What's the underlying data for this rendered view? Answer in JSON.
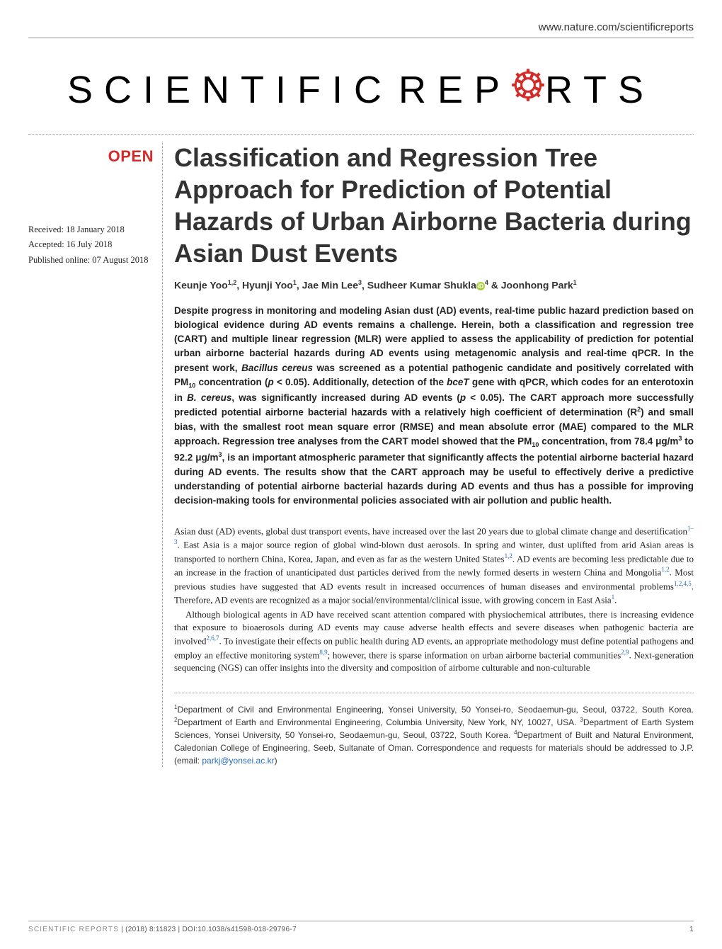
{
  "header": {
    "url": "www.nature.com/scientificreports"
  },
  "logo": {
    "part1": "SCIENTIFIC",
    "part2_pre": "REP",
    "part2_post": "RTS",
    "gear_color": "#d62a28"
  },
  "badges": {
    "open": "OPEN"
  },
  "dates": {
    "received": "Received: 18 January 2018",
    "accepted": "Accepted: 16 July 2018",
    "published": "Published online: 07 August 2018"
  },
  "title": "Classification and Regression Tree Approach for Prediction of Potential Hazards of Urban Airborne Bacteria during Asian Dust Events",
  "authors_html": "Keunje Yoo<sup>1,2</sup>, Hyunji Yoo<sup>1</sup>, Jae Min Lee<sup>3</sup>, Sudheer Kumar Shukla<span class='orcid-icon' data-name='orcid-icon' data-interactable='false'>iD</span><sup>4</sup> & Joonhong Park<sup>1</sup>",
  "abstract_html": "Despite progress in monitoring and modeling Asian dust (AD) events, real-time public hazard prediction based on biological evidence during AD events remains a challenge. Herein, both a classification and regression tree (CART) and multiple linear regression (MLR) were applied to assess the applicability of prediction for potential urban airborne bacterial hazards during AD events using metagenomic analysis and real-time qPCR. In the present work, <span class='ital'>Bacillus cereus</span> was screened as a potential pathogenic candidate and positively correlated with PM<sub>10</sub> concentration (<span class='ital'>p</span> < 0.05). Additionally, detection of the <span class='ital'>bceT</span> gene with qPCR, which codes for an enterotoxin in <span class='ital'>B. cereus</span>, was significantly increased during AD events (<span class='ital'>p</span> < 0.05). The CART approach more successfully predicted potential airborne bacterial hazards with a relatively high coefficient of determination (R<sup>2</sup>) and small bias, with the smallest root mean square error (RMSE) and mean absolute error (MAE) compared to the MLR approach. Regression tree analyses from the CART model showed that the PM<sub>10</sub> concentration, from 78.4 μg/m<sup>3</sup> to 92.2 μg/m<sup>3</sup>, is an important atmospheric parameter that significantly affects the potential airborne bacterial hazard during AD events. The results show that the CART approach may be useful to effectively derive a predictive understanding of potential airborne bacterial hazards during AD events and thus has a possible for improving decision-making tools for environmental policies associated with air pollution and public health.",
  "body": {
    "p1": "Asian dust (AD) events, global dust transport events, have increased over the last 20 years due to global climate change and desertification<sup class='ref-link'>1–3</sup>. East Asia is a major source region of global wind-blown dust aerosols. In spring and winter, dust uplifted from arid Asian areas is transported to northern China, Korea, Japan, and even as far as the western United States<sup class='ref-link'>1,2</sup>. AD events are becoming less predictable due to an increase in the fraction of unanticipated dust particles derived from the newly formed deserts in western China and Mongolia<sup class='ref-link'>1,2</sup>. Most previous studies have suggested that AD events result in increased occurrences of human diseases and environmental problems<sup class='ref-link'>1,2,4,5</sup>. Therefore, AD events are recognized as a major social/environmental/clinical issue, with growing concern in East Asia<sup class='ref-link'>1</sup>.",
    "p2": "Although biological agents in AD have received scant attention compared with physiochemical attributes, there is increasing evidence that exposure to bioaerosols during AD events may cause adverse health effects and severe diseases when pathogenic bacteria are involved<sup class='ref-link'>2,6,7</sup>. To investigate their effects on public health during AD events, an appropriate methodology must define potential pathogens and employ an effective monitoring system<sup class='ref-link'>8,9</sup>; however, there is sparse information on urban airborne bacterial communities<sup class='ref-link'>2,9</sup>. Next-generation sequencing (NGS) can offer insights into the diversity and composition of airborne culturable and non-culturable"
  },
  "affiliations_html": "<sup>1</sup>Department of Civil and Environmental Engineering, Yonsei University, 50 Yonsei-ro, Seodaemun-gu, Seoul, 03722, South Korea. <sup>2</sup>Department of Earth and Environmental Engineering, Columbia University, New York, NY, 10027, USA. <sup>3</sup>Department of Earth System Sciences, Yonsei University, 50 Yonsei-ro, Seodaemun-gu, Seoul, 03722, South Korea. <sup>4</sup>Department of Built and Natural Environment, Caledonian College of Engineering, Seeb, Sultanate of Oman. Correspondence and requests for materials should be addressed to J.P. (email: <span class='email-link'>parkj@yonsei.ac.kr</span>)",
  "footer": {
    "journal": "SCIENTIFIC REPORTS",
    "citation": " |  (2018) 8:11823  | DOI:10.1038/s41598-018-29796-7",
    "page_num": "1"
  },
  "colors": {
    "accent_red": "#d62a28",
    "link_blue": "#2a6ebb",
    "text": "#222222",
    "border": "#999999"
  }
}
